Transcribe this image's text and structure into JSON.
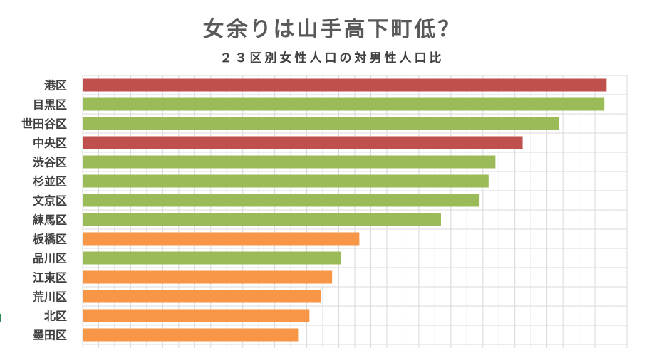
{
  "chart_data": {
    "type": "bar",
    "orientation": "horizontal",
    "title": "女余りは山手高下町低？",
    "subtitle": "２３区別女性人口の対男性人口比",
    "categories": [
      "港区",
      "目黒区",
      "世田谷区",
      "中央区",
      "渋谷区",
      "杉並区",
      "文京区",
      "練馬区",
      "板橋区",
      "品川区",
      "江東区",
      "荒川区",
      "北区",
      "墨田区"
    ],
    "values": [
      1.131,
      1.13,
      1.11,
      1.094,
      1.082,
      1.079,
      1.075,
      1.058,
      1.022,
      1.014,
      1.01,
      1.005,
      1.0,
      0.995
    ],
    "bar_colors": [
      "#c0504d",
      "#9bbb59",
      "#9bbb59",
      "#c0504d",
      "#9bbb59",
      "#9bbb59",
      "#9bbb59",
      "#9bbb59",
      "#f79646",
      "#9bbb59",
      "#f79646",
      "#f79646",
      "#f79646",
      "#f79646"
    ],
    "xlim": [
      0.9,
      1.14
    ],
    "grid": true,
    "legend": "none",
    "colors": {
      "red": "#c0504d",
      "green": "#9bbb59",
      "orange": "#f79646",
      "grid": "#d9d9d9"
    }
  }
}
